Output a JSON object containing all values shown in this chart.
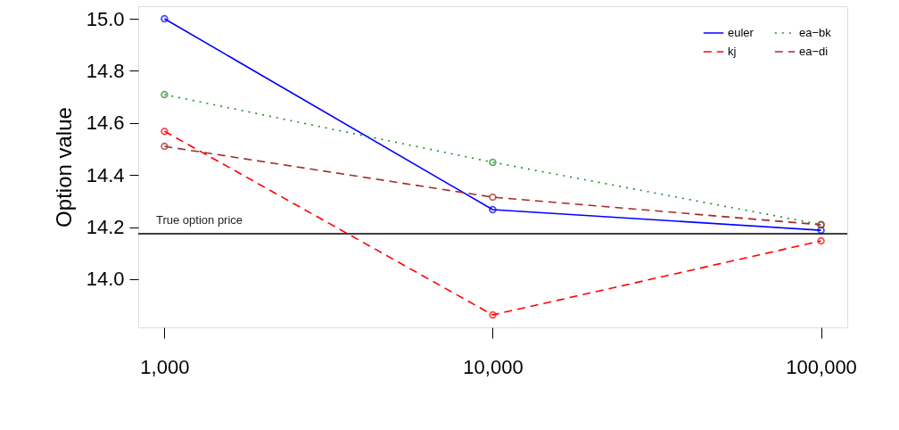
{
  "chart_data": {
    "type": "line",
    "ylabel": "Option value",
    "x": [
      1000,
      10000,
      100000
    ],
    "series": [
      {
        "name": "euler",
        "color": "#0000ff",
        "line_style": "solid",
        "values": [
          15.0,
          14.267,
          14.188
        ]
      },
      {
        "name": "kj",
        "color": "#ff0000",
        "line_style": "dashed",
        "values": [
          14.568,
          13.863,
          14.147
        ]
      },
      {
        "name": "ea−bk",
        "color": "#228b22",
        "line_style": "dotted",
        "values": [
          14.709,
          14.449,
          14.21
        ]
      },
      {
        "name": "ea−di",
        "color": "#a52a2a",
        "line_style": "dashed",
        "values": [
          14.51,
          14.315,
          14.209
        ]
      }
    ],
    "log": "x",
    "marker": "circle",
    "grid": false,
    "legend": "top right",
    "xlim": [
      832,
      120200
    ],
    "xticks": [
      {
        "value": 1000,
        "label": "1,000"
      },
      {
        "value": 10000,
        "label": "10,000"
      },
      {
        "value": 100000,
        "label": "100,000"
      }
    ],
    "ylim": [
      13.815,
      15.048
    ],
    "yticks": [
      {
        "value": 14.0,
        "label": "14.0"
      },
      {
        "value": 14.2,
        "label": "14.2"
      },
      {
        "value": 14.4,
        "label": "14.4"
      },
      {
        "value": 14.6,
        "label": "14.6"
      },
      {
        "value": 14.8,
        "label": "14.8"
      },
      {
        "value": 15.0,
        "label": "15.0"
      }
    ],
    "ref_lines": [
      {
        "axis": "y",
        "value": 14.175,
        "label": "True option price",
        "color": "#000000"
      }
    ]
  }
}
